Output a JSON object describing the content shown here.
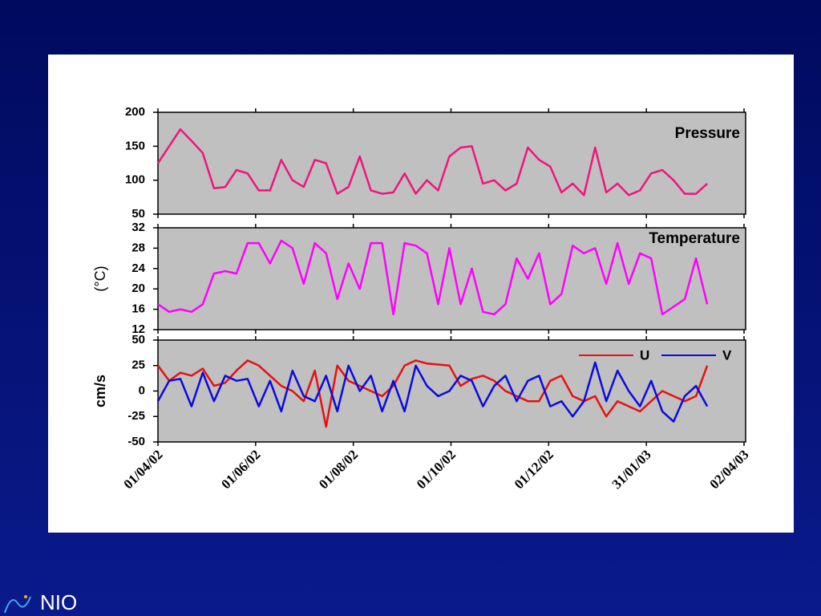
{
  "chart_data": [
    {
      "type": "line",
      "title": "Pressure",
      "x": [
        "01/04/02",
        "08/04/02",
        "15/04/02",
        "22/04/02",
        "29/04/02",
        "06/05/02",
        "13/05/02",
        "20/05/02",
        "27/05/02",
        "03/06/02",
        "10/06/02",
        "17/06/02",
        "24/06/02",
        "01/07/02",
        "08/07/02",
        "15/07/02",
        "22/07/02",
        "29/07/02",
        "05/08/02",
        "12/08/02",
        "19/08/02",
        "26/08/02",
        "02/09/02",
        "09/09/02",
        "16/09/02",
        "23/09/02",
        "30/09/02",
        "07/10/02",
        "14/10/02",
        "21/10/02",
        "28/10/02",
        "04/11/02",
        "11/11/02",
        "18/11/02",
        "25/11/02",
        "02/12/02",
        "09/12/02",
        "16/12/02",
        "23/12/02",
        "30/12/02",
        "06/01/03",
        "13/01/03",
        "20/01/03",
        "27/01/03",
        "03/02/03",
        "10/02/03",
        "17/02/03",
        "24/02/03",
        "03/03/03",
        "10/03/03"
      ],
      "series": [
        {
          "name": "Pressure",
          "color": "#f0147c",
          "values": [
            125,
            150,
            175,
            158,
            140,
            88,
            90,
            115,
            110,
            85,
            85,
            130,
            100,
            90,
            130,
            125,
            80,
            90,
            135,
            85,
            80,
            82,
            110,
            80,
            100,
            85,
            135,
            148,
            150,
            95,
            100,
            85,
            95,
            148,
            130,
            120,
            82,
            95,
            78,
            148,
            82,
            95,
            78,
            85,
            110,
            115,
            100,
            80,
            80,
            95
          ]
        }
      ],
      "xlim": [
        "01/04/02",
        "03/04/03"
      ],
      "ylim": [
        50,
        200
      ],
      "yticks": [
        50,
        100,
        150,
        200
      ]
    },
    {
      "type": "line",
      "title": "Temperature",
      "ylabel": "(°C)",
      "x": [
        "01/04/02",
        "08/04/02",
        "15/04/02",
        "22/04/02",
        "29/04/02",
        "06/05/02",
        "13/05/02",
        "20/05/02",
        "27/05/02",
        "03/06/02",
        "10/06/02",
        "17/06/02",
        "24/06/02",
        "01/07/02",
        "08/07/02",
        "15/07/02",
        "22/07/02",
        "29/07/02",
        "05/08/02",
        "12/08/02",
        "19/08/02",
        "26/08/02",
        "02/09/02",
        "09/09/02",
        "16/09/02",
        "23/09/02",
        "30/09/02",
        "07/10/02",
        "14/10/02",
        "21/10/02",
        "28/10/02",
        "04/11/02",
        "11/11/02",
        "18/11/02",
        "25/11/02",
        "02/12/02",
        "09/12/02",
        "16/12/02",
        "23/12/02",
        "30/12/02",
        "06/01/03",
        "13/01/03",
        "20/01/03",
        "27/01/03",
        "03/02/03",
        "10/02/03",
        "17/02/03",
        "24/02/03",
        "03/03/03",
        "10/03/03"
      ],
      "series": [
        {
          "name": "Temperature",
          "color": "#ff00ff",
          "values": [
            17,
            15.5,
            16,
            15.5,
            17,
            23,
            23.5,
            23,
            29,
            29,
            25,
            29.5,
            28,
            21,
            29,
            27,
            18,
            25,
            20,
            29,
            29,
            15,
            29,
            28.5,
            27,
            17,
            28,
            17,
            24,
            15.5,
            15,
            17,
            26,
            22,
            27,
            17,
            19,
            28.5,
            27,
            28,
            21,
            29,
            21,
            27,
            26,
            15,
            16.5,
            18,
            26,
            17
          ]
        }
      ],
      "xlim": [
        "01/04/02",
        "03/04/03"
      ],
      "ylim": [
        12,
        32
      ],
      "yticks": [
        12,
        16,
        20,
        24,
        28,
        32
      ]
    },
    {
      "type": "line",
      "ylabel": "cm/s",
      "x": [
        "01/04/02",
        "08/04/02",
        "15/04/02",
        "22/04/02",
        "29/04/02",
        "06/05/02",
        "13/05/02",
        "20/05/02",
        "27/05/02",
        "03/06/02",
        "10/06/02",
        "17/06/02",
        "24/06/02",
        "01/07/02",
        "08/07/02",
        "15/07/02",
        "22/07/02",
        "29/07/02",
        "05/08/02",
        "12/08/02",
        "19/08/02",
        "26/08/02",
        "02/09/02",
        "09/09/02",
        "16/09/02",
        "23/09/02",
        "30/09/02",
        "07/10/02",
        "14/10/02",
        "21/10/02",
        "28/10/02",
        "04/11/02",
        "11/11/02",
        "18/11/02",
        "25/11/02",
        "02/12/02",
        "09/12/02",
        "16/12/02",
        "23/12/02",
        "30/12/02",
        "06/01/03",
        "13/01/03",
        "20/01/03",
        "27/01/03",
        "03/02/03",
        "10/02/03",
        "17/02/03",
        "24/02/03",
        "03/03/03",
        "10/03/03"
      ],
      "series": [
        {
          "name": "U",
          "color": "#e81010",
          "values": [
            25,
            10,
            18,
            15,
            22,
            5,
            8,
            20,
            30,
            25,
            15,
            5,
            0,
            -10,
            20,
            -35,
            25,
            10,
            5,
            0,
            -5,
            5,
            25,
            30,
            27,
            26,
            25,
            5,
            12,
            15,
            10,
            0,
            -5,
            -10,
            -10,
            10,
            15,
            -5,
            -10,
            -5,
            -25,
            -10,
            -15,
            -20,
            -10,
            0,
            -5,
            -10,
            -5,
            25
          ]
        },
        {
          "name": "V",
          "color": "#0a0ae0",
          "values": [
            -10,
            10,
            12,
            -15,
            18,
            -10,
            15,
            10,
            12,
            -15,
            10,
            -20,
            20,
            -5,
            -10,
            15,
            -20,
            25,
            0,
            15,
            -20,
            10,
            -20,
            25,
            5,
            -5,
            0,
            15,
            10,
            -15,
            5,
            15,
            -10,
            10,
            15,
            -15,
            -10,
            -25,
            -10,
            28,
            -10,
            20,
            0,
            -15,
            10,
            -20,
            -30,
            -5,
            5,
            -15
          ]
        }
      ],
      "legend": "upper right",
      "xlim": [
        "01/04/02",
        "03/04/03"
      ],
      "ylim": [
        -50,
        50
      ],
      "yticks": [
        -50,
        -25,
        0,
        25,
        50
      ],
      "xticks": [
        "01/04/02",
        "01/06/02",
        "01/08/02",
        "01/10/02",
        "01/12/02",
        "31/01/03",
        "02/04/03"
      ]
    }
  ],
  "logo": "NIO"
}
